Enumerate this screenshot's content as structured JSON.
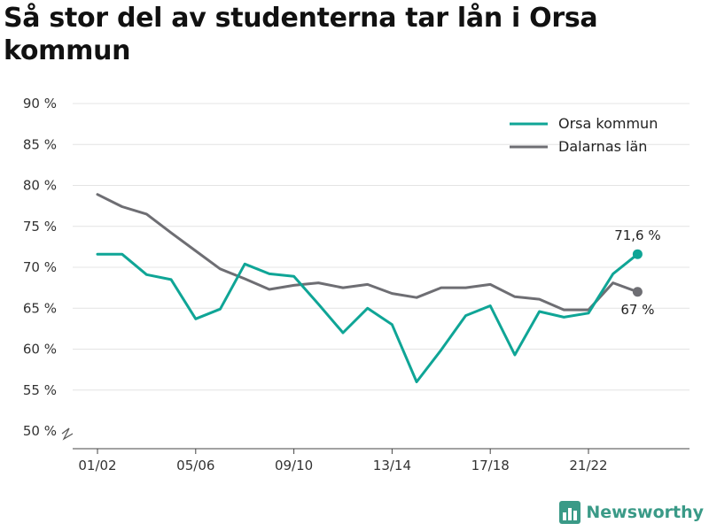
{
  "title": "Så stor del av studenterna tar lån i Orsa kommun",
  "brand": "Newsworthy",
  "colors": {
    "orsa": "#0fa596",
    "dalarna": "#6e6e73",
    "grid": "#e4e4e4",
    "brand": "#3a9a87"
  },
  "chart_data": {
    "type": "line",
    "x": [
      "01/02",
      "02/03",
      "03/04",
      "04/05",
      "05/06",
      "06/07",
      "07/08",
      "08/09",
      "09/10",
      "10/11",
      "11/12",
      "12/13",
      "13/14",
      "14/15",
      "15/16",
      "16/17",
      "17/18",
      "18/19",
      "19/20",
      "20/21",
      "21/22",
      "22/23",
      "23/24"
    ],
    "x_tick_labels": [
      "01/02",
      "05/06",
      "09/10",
      "13/14",
      "17/18",
      "21/22"
    ],
    "y_tick_labels": [
      "50 %",
      "55 %",
      "60 %",
      "65 %",
      "70 %",
      "75 %",
      "80 %",
      "85 %",
      "90 %"
    ],
    "ylim": [
      50,
      90
    ],
    "y_axis_break": true,
    "grid": "horizontal",
    "legend_position": "top-right",
    "series": [
      {
        "name": "Orsa kommun",
        "key": "orsa",
        "values": [
          71.6,
          71.6,
          69.1,
          68.5,
          63.7,
          64.9,
          70.4,
          69.2,
          68.9,
          65.5,
          62.0,
          65.0,
          63.0,
          56.0,
          59.9,
          64.1,
          65.3,
          59.3,
          64.6,
          63.9,
          64.4,
          69.2,
          71.6
        ],
        "end_label": "71,6 %"
      },
      {
        "name": "Dalarnas län",
        "key": "dalarna",
        "values": [
          78.9,
          77.4,
          76.5,
          74.2,
          72.0,
          69.8,
          68.6,
          67.3,
          67.8,
          68.1,
          67.5,
          67.9,
          66.8,
          66.3,
          67.5,
          67.5,
          67.9,
          66.4,
          66.1,
          64.8,
          64.8,
          68.1,
          67.0
        ],
        "end_label": "67 %"
      }
    ]
  }
}
